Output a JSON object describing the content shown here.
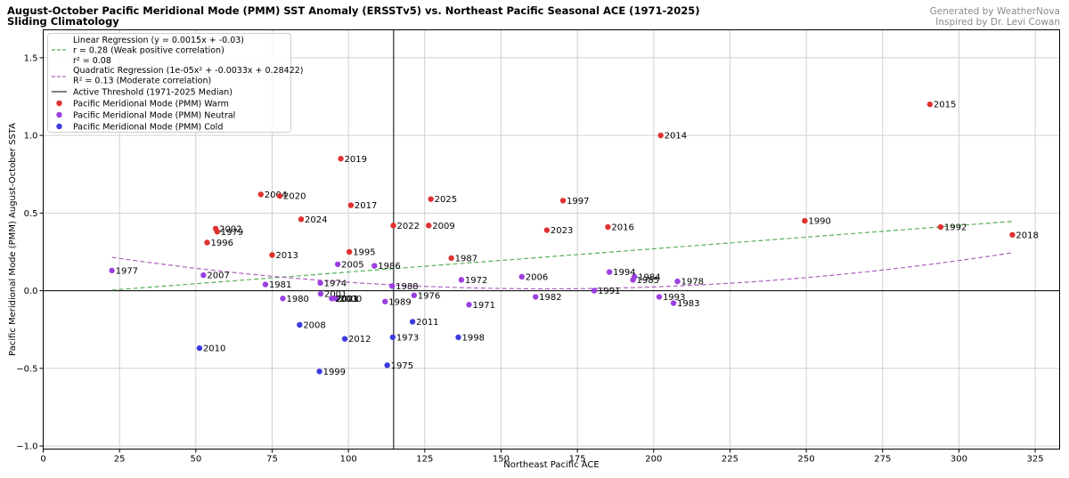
{
  "header": {
    "title_line1": "August-October Pacific Meridional Mode (PMM) SST Anomaly (ERSSTv5) vs. Northeast Pacific Seasonal ACE (1971-2025)",
    "title_line2": "Sliding Climatology",
    "credit_line1": "Generated by WeatherNova",
    "credit_line2": "Inspired by Dr. Levi Cowan"
  },
  "colors": {
    "warm": "#e03131",
    "neutral": "#9b3fe0",
    "cold": "#3b3be0",
    "linear": "#55b055",
    "quadratic": "#b060c0",
    "grid": "#d0d0d0",
    "axis": "#000000"
  },
  "chart_data": {
    "type": "scatter",
    "xlabel": "Northeast Pacific ACE",
    "ylabel": "Pacific Meridional Mode (PMM) August-October SSTA",
    "xlim": [
      0,
      333
    ],
    "ylim": [
      -1.02,
      1.68
    ],
    "xticks": [
      0,
      25,
      50,
      75,
      100,
      125,
      150,
      175,
      200,
      225,
      250,
      275,
      300,
      325
    ],
    "yticks": [
      -1.0,
      -0.5,
      0.0,
      0.5,
      1.0,
      1.5
    ],
    "ytick_labels": [
      "−1.0",
      "−0.5",
      "0.0",
      "0.5",
      "1.0",
      "1.5"
    ],
    "grid": true,
    "legend_position": "top-left",
    "threshold_x": 114.8,
    "linear_regression": {
      "slope": 0.0015,
      "intercept": -0.03,
      "x_range": [
        22.5,
        317.5
      ]
    },
    "quadratic_regression": {
      "a": 1e-05,
      "b": -0.0033,
      "c": 0.28422,
      "x_range": [
        22.5,
        317.5
      ]
    },
    "legend": {
      "linear_line1": "Linear Regression (y = 0.0015x + -0.03)",
      "linear_line2": "r = 0.28 (Weak positive correlation)",
      "linear_line3": "r² = 0.08",
      "quad_line1": "Quadratic Regression (1e-05x² + -0.0033x + 0.28422)",
      "quad_line2": "R² = 0.13 (Moderate correlation)",
      "threshold": "Active Threshold (1971-2025 Median)",
      "warm": "Pacific Meridional Mode (PMM) Warm",
      "neutral": "Pacific Meridional Mode (PMM) Neutral",
      "cold": "Pacific Meridional Mode (PMM) Cold"
    },
    "points": [
      {
        "year": "1971",
        "x": 139.5,
        "y": -0.09,
        "phase": "neutral"
      },
      {
        "year": "1972",
        "x": 137.0,
        "y": 0.07,
        "phase": "neutral"
      },
      {
        "year": "1973",
        "x": 114.5,
        "y": -0.3,
        "phase": "cold"
      },
      {
        "year": "1974",
        "x": 90.8,
        "y": 0.05,
        "phase": "neutral"
      },
      {
        "year": "1975",
        "x": 112.7,
        "y": -0.48,
        "phase": "cold"
      },
      {
        "year": "1976",
        "x": 121.5,
        "y": -0.03,
        "phase": "neutral"
      },
      {
        "year": "1977",
        "x": 22.5,
        "y": 0.13,
        "phase": "neutral"
      },
      {
        "year": "1978",
        "x": 207.8,
        "y": 0.06,
        "phase": "neutral"
      },
      {
        "year": "1979",
        "x": 57.0,
        "y": 0.38,
        "phase": "warm"
      },
      {
        "year": "1980",
        "x": 78.5,
        "y": -0.05,
        "phase": "neutral"
      },
      {
        "year": "1981",
        "x": 72.8,
        "y": 0.04,
        "phase": "neutral"
      },
      {
        "year": "1982",
        "x": 161.3,
        "y": -0.04,
        "phase": "neutral"
      },
      {
        "year": "1983",
        "x": 206.5,
        "y": -0.08,
        "phase": "neutral"
      },
      {
        "year": "1984",
        "x": 193.7,
        "y": 0.09,
        "phase": "neutral"
      },
      {
        "year": "1985",
        "x": 193.2,
        "y": 0.07,
        "phase": "neutral"
      },
      {
        "year": "1986",
        "x": 108.5,
        "y": 0.16,
        "phase": "neutral"
      },
      {
        "year": "1987",
        "x": 133.7,
        "y": 0.21,
        "phase": "warm"
      },
      {
        "year": "1988",
        "x": 114.3,
        "y": 0.03,
        "phase": "neutral"
      },
      {
        "year": "1989",
        "x": 112.0,
        "y": -0.07,
        "phase": "neutral"
      },
      {
        "year": "1990",
        "x": 249.5,
        "y": 0.45,
        "phase": "warm"
      },
      {
        "year": "1991",
        "x": 180.5,
        "y": 0.0,
        "phase": "neutral"
      },
      {
        "year": "1992",
        "x": 294.0,
        "y": 0.41,
        "phase": "warm"
      },
      {
        "year": "1993",
        "x": 201.8,
        "y": -0.04,
        "phase": "neutral"
      },
      {
        "year": "1994",
        "x": 185.5,
        "y": 0.12,
        "phase": "neutral"
      },
      {
        "year": "1995",
        "x": 100.3,
        "y": 0.25,
        "phase": "warm"
      },
      {
        "year": "1996",
        "x": 53.7,
        "y": 0.31,
        "phase": "warm"
      },
      {
        "year": "1997",
        "x": 170.3,
        "y": 0.58,
        "phase": "warm"
      },
      {
        "year": "1998",
        "x": 136.0,
        "y": -0.3,
        "phase": "cold"
      },
      {
        "year": "1999",
        "x": 90.5,
        "y": -0.52,
        "phase": "cold"
      },
      {
        "year": "2000",
        "x": 95.8,
        "y": -0.05,
        "phase": "neutral"
      },
      {
        "year": "2001",
        "x": 90.9,
        "y": -0.02,
        "phase": "neutral"
      },
      {
        "year": "2002",
        "x": 56.5,
        "y": 0.4,
        "phase": "warm"
      },
      {
        "year": "2003",
        "x": 94.5,
        "y": -0.05,
        "phase": "neutral"
      },
      {
        "year": "2004",
        "x": 71.3,
        "y": 0.62,
        "phase": "warm"
      },
      {
        "year": "2005",
        "x": 96.5,
        "y": 0.17,
        "phase": "neutral"
      },
      {
        "year": "2006",
        "x": 156.8,
        "y": 0.09,
        "phase": "neutral"
      },
      {
        "year": "2007",
        "x": 52.5,
        "y": 0.1,
        "phase": "neutral"
      },
      {
        "year": "2008",
        "x": 84.0,
        "y": -0.22,
        "phase": "cold"
      },
      {
        "year": "2009",
        "x": 126.3,
        "y": 0.42,
        "phase": "warm"
      },
      {
        "year": "2010",
        "x": 51.2,
        "y": -0.37,
        "phase": "cold"
      },
      {
        "year": "2011",
        "x": 121.0,
        "y": -0.2,
        "phase": "cold"
      },
      {
        "year": "2012",
        "x": 98.8,
        "y": -0.31,
        "phase": "cold"
      },
      {
        "year": "2013",
        "x": 75.0,
        "y": 0.23,
        "phase": "warm"
      },
      {
        "year": "2014",
        "x": 202.3,
        "y": 1.0,
        "phase": "warm"
      },
      {
        "year": "2015",
        "x": 290.5,
        "y": 1.2,
        "phase": "warm"
      },
      {
        "year": "2016",
        "x": 185.0,
        "y": 0.41,
        "phase": "warm"
      },
      {
        "year": "2017",
        "x": 100.8,
        "y": 0.55,
        "phase": "warm"
      },
      {
        "year": "2018",
        "x": 317.5,
        "y": 0.36,
        "phase": "warm"
      },
      {
        "year": "2019",
        "x": 97.5,
        "y": 0.85,
        "phase": "warm"
      },
      {
        "year": "2020",
        "x": 77.5,
        "y": 0.61,
        "phase": "warm"
      },
      {
        "year": "2021",
        "x": 94.8,
        "y": -0.05,
        "phase": "neutral"
      },
      {
        "year": "2022",
        "x": 114.7,
        "y": 0.42,
        "phase": "warm"
      },
      {
        "year": "2023",
        "x": 165.0,
        "y": 0.39,
        "phase": "warm"
      },
      {
        "year": "2024",
        "x": 84.5,
        "y": 0.46,
        "phase": "warm"
      },
      {
        "year": "2025",
        "x": 127.0,
        "y": 0.59,
        "phase": "warm"
      }
    ]
  }
}
